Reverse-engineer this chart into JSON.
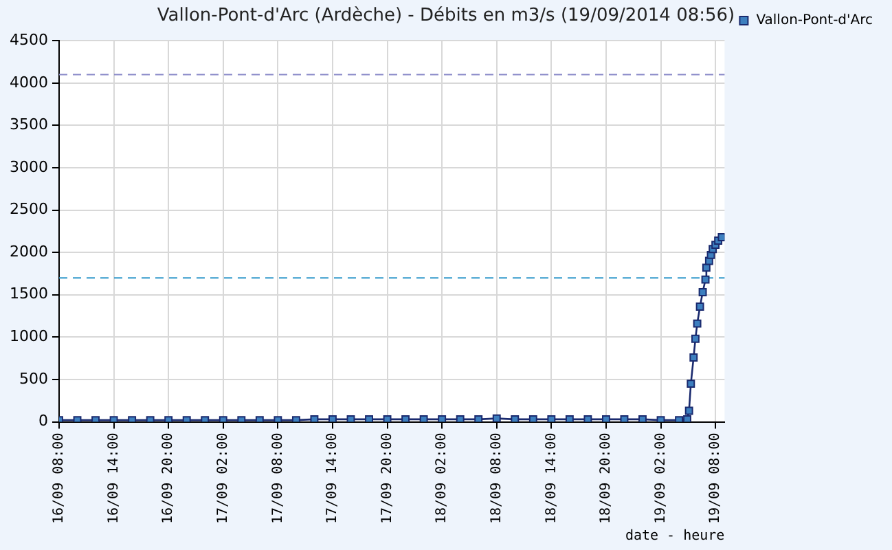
{
  "chart_data": {
    "type": "line",
    "title": "Vallon-Pont-d'Arc (Ardèche) - Débits en m3/s (19/09/2014 08:56)",
    "xlabel": "date - heure",
    "x": [
      "2014-09-16T08:00",
      "2014-09-16T10:00",
      "2014-09-16T12:00",
      "2014-09-16T14:00",
      "2014-09-16T16:00",
      "2014-09-16T18:00",
      "2014-09-16T20:00",
      "2014-09-16T22:00",
      "2014-09-17T00:00",
      "2014-09-17T02:00",
      "2014-09-17T04:00",
      "2014-09-17T06:00",
      "2014-09-17T08:00",
      "2014-09-17T10:00",
      "2014-09-17T12:00",
      "2014-09-17T14:00",
      "2014-09-17T16:00",
      "2014-09-17T18:00",
      "2014-09-17T20:00",
      "2014-09-17T22:00",
      "2014-09-18T00:00",
      "2014-09-18T02:00",
      "2014-09-18T04:00",
      "2014-09-18T06:00",
      "2014-09-18T08:00",
      "2014-09-18T10:00",
      "2014-09-18T12:00",
      "2014-09-18T14:00",
      "2014-09-18T16:00",
      "2014-09-18T18:00",
      "2014-09-18T20:00",
      "2014-09-18T22:00",
      "2014-09-19T00:00",
      "2014-09-19T02:00",
      "2014-09-19T04:00",
      "2014-09-19T04:54",
      "2014-09-19T05:06",
      "2014-09-19T05:18",
      "2014-09-19T05:36",
      "2014-09-19T05:48",
      "2014-09-19T06:00",
      "2014-09-19T06:18",
      "2014-09-19T06:36",
      "2014-09-19T06:54",
      "2014-09-19T07:00",
      "2014-09-19T07:18",
      "2014-09-19T07:30",
      "2014-09-19T07:42",
      "2014-09-19T08:00",
      "2014-09-19T08:18",
      "2014-09-19T08:42"
    ],
    "series": [
      {
        "name": "Vallon-Pont-d'Arc",
        "color": "#3d7fbf",
        "values": [
          20,
          20,
          20,
          20,
          20,
          20,
          20,
          20,
          20,
          20,
          20,
          20,
          20,
          20,
          30,
          30,
          30,
          30,
          30,
          30,
          30,
          30,
          30,
          30,
          40,
          30,
          30,
          30,
          30,
          30,
          30,
          30,
          30,
          20,
          20,
          30,
          130,
          450,
          760,
          980,
          1160,
          1360,
          1530,
          1680,
          1820,
          1900,
          1970,
          2040,
          2090,
          2140,
          2180
        ]
      }
    ],
    "xlim": [
      "2014-09-16T08:00",
      "2014-09-19T09:00"
    ],
    "xticks": [
      {
        "value": "2014-09-16T08:00",
        "label": "16/09 08:00"
      },
      {
        "value": "2014-09-16T14:00",
        "label": "16/09 14:00"
      },
      {
        "value": "2014-09-16T20:00",
        "label": "16/09 20:00"
      },
      {
        "value": "2014-09-17T02:00",
        "label": "17/09 02:00"
      },
      {
        "value": "2014-09-17T08:00",
        "label": "17/09 08:00"
      },
      {
        "value": "2014-09-17T14:00",
        "label": "17/09 14:00"
      },
      {
        "value": "2014-09-17T20:00",
        "label": "17/09 20:00"
      },
      {
        "value": "2014-09-18T02:00",
        "label": "18/09 02:00"
      },
      {
        "value": "2014-09-18T08:00",
        "label": "18/09 08:00"
      },
      {
        "value": "2014-09-18T14:00",
        "label": "18/09 14:00"
      },
      {
        "value": "2014-09-18T20:00",
        "label": "18/09 20:00"
      },
      {
        "value": "2014-09-19T02:00",
        "label": "19/09 02:00"
      },
      {
        "value": "2014-09-19T08:00",
        "label": "19/09 08:00"
      }
    ],
    "ylim": [
      0,
      4500
    ],
    "yticks": [
      0,
      500,
      1000,
      1500,
      2000,
      2500,
      3000,
      3500,
      4000,
      4500
    ],
    "ref_lines": [
      {
        "axis": "y",
        "value": 4100,
        "color": "#8a8ac8",
        "line_style": "dashed"
      },
      {
        "axis": "y",
        "value": 1700,
        "color": "#3399cc",
        "line_style": "dashed"
      }
    ],
    "grid": true,
    "legend": "top right",
    "marker": "square",
    "line_style": "solid"
  }
}
